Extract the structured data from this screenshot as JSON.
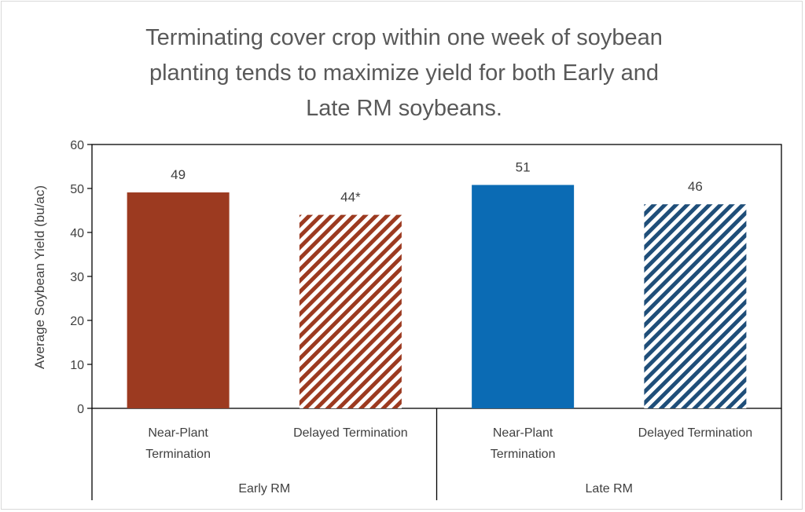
{
  "chart_data": {
    "type": "bar",
    "title": "Terminating cover crop within one week of soybean planting tends to maximize yield for both Early and Late RM soybeans.",
    "title_lines": [
      "Terminating cover crop within one week of soybean",
      "planting tends to maximize yield for both Early and",
      "Late RM soybeans."
    ],
    "ylabel": "Average Soybean Yield (bu/ac)",
    "ylim": [
      0,
      60
    ],
    "yticks": [
      0,
      10,
      20,
      30,
      40,
      50,
      60
    ],
    "groups": [
      {
        "label": "Early RM",
        "bars": [
          {
            "category": [
              "Near-Plant",
              "Termination"
            ],
            "value": 49.1,
            "label": "49",
            "color": "#9c3a20",
            "pattern": "solid"
          },
          {
            "category": [
              "Delayed Termination"
            ],
            "value": 44.0,
            "label": "44*",
            "color": "#9c3a20",
            "pattern": "diagonal-stripe"
          }
        ]
      },
      {
        "label": "Late RM",
        "bars": [
          {
            "category": [
              "Near-Plant",
              "Termination"
            ],
            "value": 50.8,
            "label": "51",
            "color": "#0b6bb4",
            "pattern": "solid"
          },
          {
            "category": [
              "Delayed Termination"
            ],
            "value": 46.4,
            "label": "46",
            "color": "#1f4e79",
            "pattern": "diagonal-stripe"
          }
        ]
      }
    ],
    "grid": false,
    "legend": "none"
  }
}
